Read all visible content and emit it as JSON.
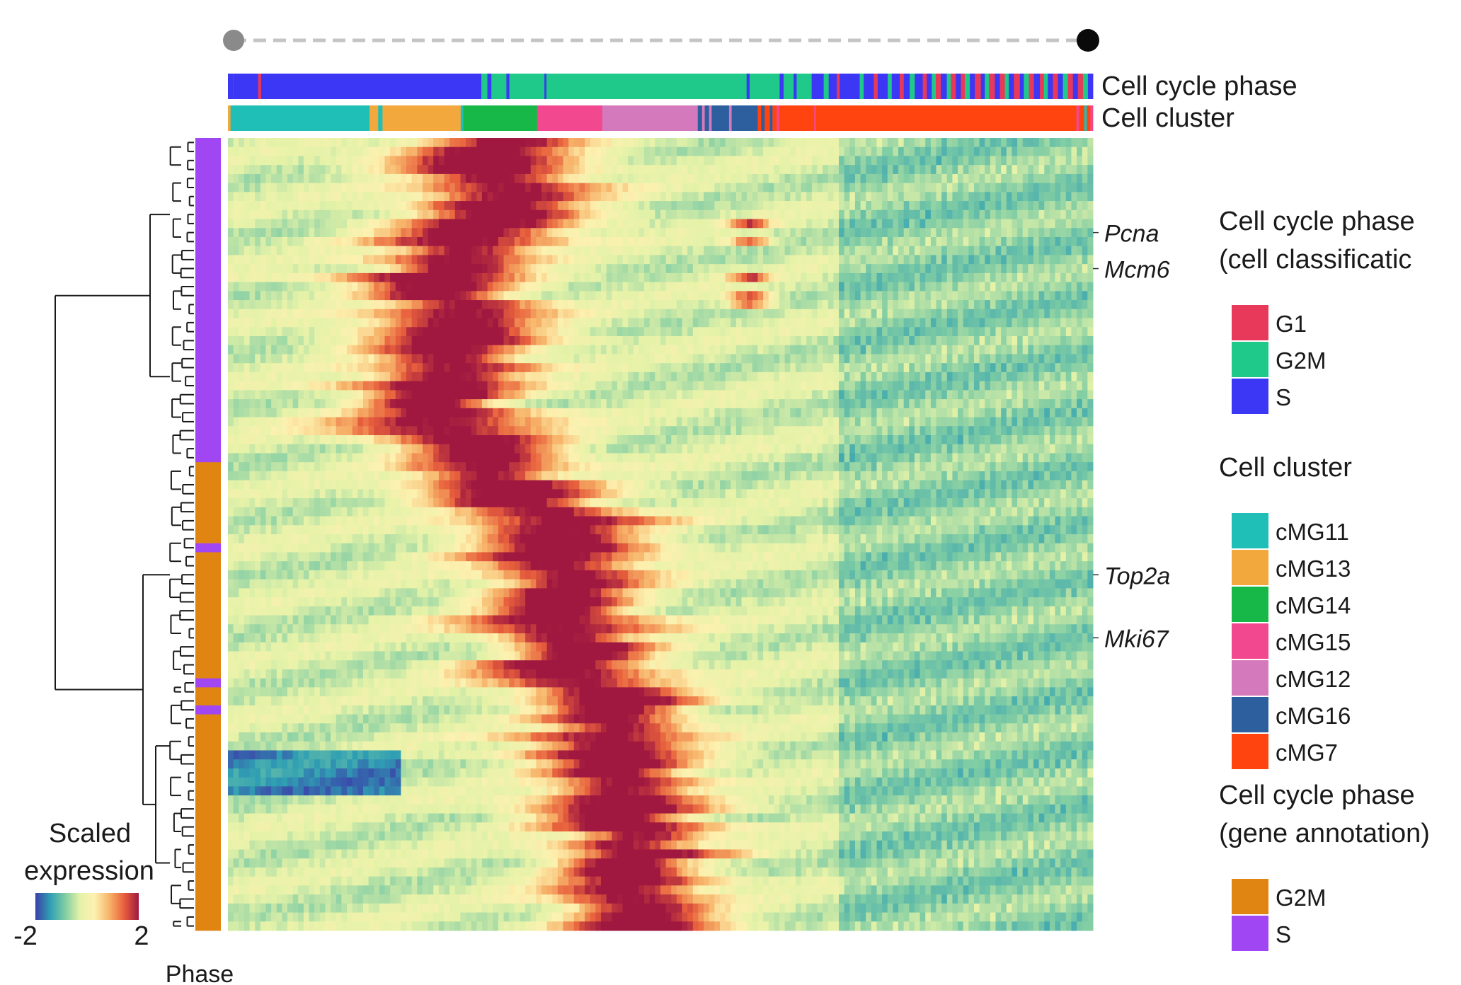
{
  "chart_data": {
    "type": "heatmap",
    "title": "",
    "pseudotime_arrow": true,
    "annotation_tracks": [
      {
        "label": "Cell cycle phase",
        "segments": [
          {
            "cat": "S",
            "w": 0.5
          },
          {
            "cat": "G1",
            "w": 0.02
          },
          {
            "cat": "S",
            "w": 2.5
          },
          {
            "cat": "G1",
            "w": 0.3
          },
          {
            "cat": "S",
            "w": 22
          },
          {
            "cat": "G2M",
            "w": 0.6
          },
          {
            "cat": "S",
            "w": 0.4
          },
          {
            "cat": "G2M",
            "w": 1.5
          },
          {
            "cat": "S",
            "w": 0.3
          },
          {
            "cat": "G2M",
            "w": 3.5
          },
          {
            "cat": "S",
            "w": 0.2
          },
          {
            "cat": "G2M",
            "w": 20
          },
          {
            "cat": "S",
            "w": 0.3
          },
          {
            "cat": "G2M",
            "w": 3
          },
          {
            "cat": "S",
            "w": 0.4
          },
          {
            "cat": "G2M",
            "w": 1
          },
          {
            "cat": "S",
            "w": 0.3
          },
          {
            "cat": "G2M",
            "w": 1.5
          },
          {
            "cat": "S",
            "w": 1.2
          },
          {
            "cat": "G2M",
            "w": 0.5
          },
          {
            "cat": "S",
            "w": 0.8
          },
          {
            "cat": "G1",
            "w": 0.3
          },
          {
            "cat": "S",
            "w": 2
          },
          {
            "cat": "G2M",
            "w": 0.4
          },
          {
            "cat": "S",
            "w": 1
          },
          {
            "cat": "G1",
            "w": 0.4
          },
          {
            "cat": "S",
            "w": 1
          },
          {
            "cat": "G2M",
            "w": 0.4
          },
          {
            "cat": "S",
            "w": 0.8
          },
          {
            "cat": "G1",
            "w": 0.4
          },
          {
            "cat": "S",
            "w": 0.6
          },
          {
            "cat": "G2M",
            "w": 0.5
          },
          {
            "cat": "S",
            "w": 0.8
          },
          {
            "cat": "G1",
            "w": 0.4
          },
          {
            "cat": "S",
            "w": 0.5
          },
          {
            "cat": "G2M",
            "w": 0.4
          },
          {
            "cat": "G1",
            "w": 0.5
          },
          {
            "cat": "S",
            "w": 0.6
          },
          {
            "cat": "G2M",
            "w": 0.4
          },
          {
            "cat": "G1",
            "w": 0.5
          },
          {
            "cat": "S",
            "w": 0.5
          },
          {
            "cat": "G1",
            "w": 0.4
          },
          {
            "cat": "G2M",
            "w": 0.5
          },
          {
            "cat": "S",
            "w": 0.5
          },
          {
            "cat": "G1",
            "w": 0.6
          },
          {
            "cat": "S",
            "w": 0.4
          },
          {
            "cat": "G2M",
            "w": 0.4
          },
          {
            "cat": "G1",
            "w": 0.6
          },
          {
            "cat": "S",
            "w": 0.5
          },
          {
            "cat": "G1",
            "w": 0.5
          },
          {
            "cat": "G2M",
            "w": 0.4
          },
          {
            "cat": "S",
            "w": 0.5
          },
          {
            "cat": "G1",
            "w": 0.6
          },
          {
            "cat": "S",
            "w": 0.4
          },
          {
            "cat": "G2M",
            "w": 0.5
          },
          {
            "cat": "G1",
            "w": 0.5
          },
          {
            "cat": "S",
            "w": 0.6
          },
          {
            "cat": "G1",
            "w": 0.4
          },
          {
            "cat": "G2M",
            "w": 0.4
          },
          {
            "cat": "S",
            "w": 0.5
          },
          {
            "cat": "G1",
            "w": 0.5
          },
          {
            "cat": "S",
            "w": 0.5
          },
          {
            "cat": "G2M",
            "w": 0.5
          },
          {
            "cat": "G1",
            "w": 0.5
          },
          {
            "cat": "S",
            "w": 0.5
          },
          {
            "cat": "G1",
            "w": 0.5
          },
          {
            "cat": "G2M",
            "w": 0.5
          },
          {
            "cat": "S",
            "w": 0.5
          }
        ]
      },
      {
        "label": "Cell cluster",
        "segments": [
          {
            "cat": "cMG13",
            "w": 0.3
          },
          {
            "cat": "cMG11",
            "w": 16
          },
          {
            "cat": "cMG13",
            "w": 1
          },
          {
            "cat": "cMG11",
            "w": 0.5
          },
          {
            "cat": "cMG13",
            "w": 9
          },
          {
            "cat": "cMG11",
            "w": 0.3
          },
          {
            "cat": "cMG14",
            "w": 8.5
          },
          {
            "cat": "cMG15",
            "w": 7.5
          },
          {
            "cat": "cMG12",
            "w": 11
          },
          {
            "cat": "cMG16",
            "w": 0.5
          },
          {
            "cat": "cMG12",
            "w": 0.3
          },
          {
            "cat": "cMG16",
            "w": 0.5
          },
          {
            "cat": "cMG12",
            "w": 0.3
          },
          {
            "cat": "cMG16",
            "w": 2
          },
          {
            "cat": "cMG12",
            "w": 0.3
          },
          {
            "cat": "cMG16",
            "w": 3
          },
          {
            "cat": "cMG7",
            "w": 0.4
          },
          {
            "cat": "cMG16",
            "w": 0.4
          },
          {
            "cat": "cMG7",
            "w": 0.6
          },
          {
            "cat": "cMG16",
            "w": 0.3
          },
          {
            "cat": "cMG7",
            "w": 0.5
          },
          {
            "cat": "cMG15",
            "w": 0.3
          },
          {
            "cat": "cMG7",
            "w": 4
          },
          {
            "cat": "cMG15",
            "w": 0.2
          },
          {
            "cat": "cMG7",
            "w": 30
          },
          {
            "cat": "cMG15",
            "w": 0.3
          },
          {
            "cat": "cMG7",
            "w": 0.6
          },
          {
            "cat": "cMG11",
            "w": 0.3
          },
          {
            "cat": "cMG7",
            "w": 0.4
          },
          {
            "cat": "cMG15",
            "w": 0.3
          }
        ]
      }
    ],
    "gene_labels": [
      "Pcna",
      "Mcm6",
      "Top2a",
      "Mki67"
    ],
    "phase_annotation": {
      "label": "Phase",
      "blocks": [
        {
          "cat": "S",
          "rows": 36
        },
        {
          "cat": "G2M",
          "rows": 9
        },
        {
          "cat": "S",
          "rows": 1
        },
        {
          "cat": "G2M",
          "rows": 14
        },
        {
          "cat": "S",
          "rows": 1
        },
        {
          "cat": "G2M",
          "rows": 2
        },
        {
          "cat": "S",
          "rows": 1
        },
        {
          "cat": "G2M",
          "rows": 24
        }
      ]
    },
    "heatmap_rows": 88,
    "heatmap_columns": 160,
    "color_range": [
      -2,
      2
    ],
    "legends": [
      {
        "title_lines": [
          "Cell cycle phase",
          "(cell classificatic"
        ],
        "items": [
          {
            "label": "G1",
            "color": "#e8395a"
          },
          {
            "label": "G2M",
            "color": "#1fc98a"
          },
          {
            "label": "S",
            "color": "#3c37f4"
          }
        ]
      },
      {
        "title_lines": [
          "Cell cluster"
        ],
        "items": [
          {
            "label": "cMG11",
            "color": "#1fbfb8"
          },
          {
            "label": "cMG13",
            "color": "#f2a83c"
          },
          {
            "label": "cMG14",
            "color": "#18b848"
          },
          {
            "label": "cMG15",
            "color": "#f2488f"
          },
          {
            "label": "cMG12",
            "color": "#d479bc"
          },
          {
            "label": "cMG16",
            "color": "#2d5f9e"
          },
          {
            "label": "cMG7",
            "color": "#ff4410"
          }
        ]
      },
      {
        "title_lines": [
          "Cell cycle phase",
          "(gene annotation)"
        ],
        "items": [
          {
            "label": "G2M",
            "color": "#e08512"
          },
          {
            "label": "S",
            "color": "#a146f3"
          }
        ]
      }
    ],
    "colorbar": {
      "title_lines": [
        "Scaled",
        "expression"
      ],
      "min_label": "-2",
      "max_label": "2",
      "stops": [
        "#3b3fa8",
        "#2f9fb3",
        "#7fcca4",
        "#e4f2a8",
        "#fdf1b0",
        "#f7b46a",
        "#e8603c",
        "#a01840"
      ]
    },
    "colors": {
      "track_phase": {
        "G1": "#e8395a",
        "G2M": "#1fc98a",
        "S": "#3c37f4"
      },
      "track_cluster": {
        "cMG11": "#1fbfb8",
        "cMG13": "#f2a83c",
        "cMG14": "#18b848",
        "cMG15": "#f2488f",
        "cMG12": "#d479bc",
        "cMG16": "#2d5f9e",
        "cMG7": "#ff4410"
      },
      "gene_phase": {
        "G2M": "#e08512",
        "S": "#a146f3"
      },
      "arrow_start": "#8a8a8a",
      "arrow_end": "#0a0a0a",
      "arrow_line": "#c4c4c4",
      "dendrogram": "#1a1a1a"
    }
  }
}
